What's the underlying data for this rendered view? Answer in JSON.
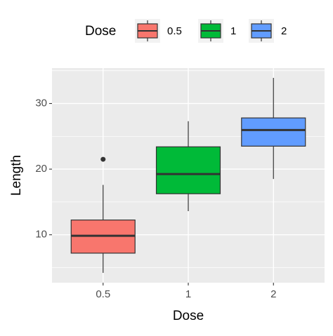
{
  "chart_data": {
    "type": "box",
    "x_label": "Dose",
    "y_label": "Length",
    "legend_title": "Dose",
    "legend_position": "top",
    "categories": [
      "0.5",
      "1",
      "2"
    ],
    "colors": [
      "#f8766d",
      "#00ba38",
      "#619cff"
    ],
    "boxes": [
      {
        "min": 4.2,
        "q1": 7.2,
        "median": 9.85,
        "q3": 12.25,
        "max": 17.6,
        "outliers": [
          21.5
        ]
      },
      {
        "min": 13.6,
        "q1": 16.25,
        "median": 19.25,
        "q3": 23.4,
        "max": 27.3,
        "outliers": []
      },
      {
        "min": 18.5,
        "q1": 23.5,
        "median": 25.95,
        "q3": 27.8,
        "max": 33.9,
        "outliers": []
      }
    ],
    "ylim": [
      2.7,
      35.4
    ],
    "yticks": [
      10,
      20,
      30
    ],
    "minor_yticks": [
      5,
      15,
      25,
      35
    ],
    "grid": true
  }
}
